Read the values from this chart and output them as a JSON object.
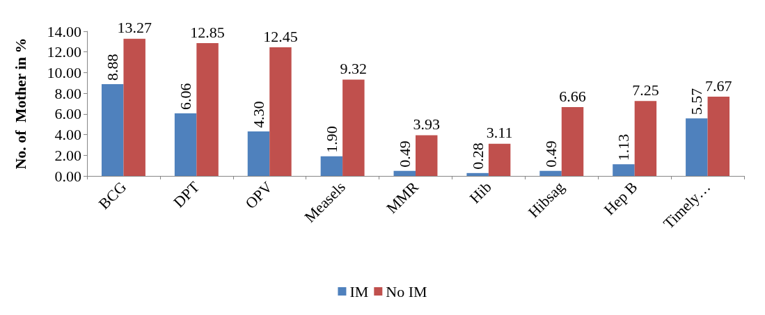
{
  "chart_data": {
    "type": "bar",
    "ylabel": "No. of  Mother in %",
    "categories": [
      "BCG",
      "DPT",
      "OPV",
      "Measels",
      "MMR",
      "Hib",
      "Hibsag",
      "Hep B",
      "Timely…"
    ],
    "series": [
      {
        "name": "IM",
        "color": "#4f81bd",
        "values": [
          8.88,
          6.06,
          4.3,
          1.9,
          0.49,
          0.28,
          0.49,
          1.13,
          5.57
        ],
        "value_labels": [
          "8.88",
          "6.06",
          "4.30",
          "1.90",
          "0.49",
          "0.28",
          "0.49",
          "1.13",
          "5.57"
        ]
      },
      {
        "name": "No IM",
        "color": "#c0504d",
        "values": [
          13.27,
          12.85,
          12.45,
          9.32,
          3.93,
          3.11,
          6.66,
          7.25,
          7.67
        ],
        "value_labels": [
          "13.27",
          "12.85",
          "12.45",
          "9.32",
          "3.93",
          "3.11",
          "6.66",
          "7.25",
          "7.67"
        ]
      }
    ],
    "ylim": [
      0,
      14
    ],
    "yticks": [
      {
        "value": 0,
        "label": "0.00"
      },
      {
        "value": 2,
        "label": "2.00"
      },
      {
        "value": 4,
        "label": "4.00"
      },
      {
        "value": 6,
        "label": "6.00"
      },
      {
        "value": 8,
        "label": "8.00"
      },
      {
        "value": 10,
        "label": "10.00"
      },
      {
        "value": 12,
        "label": "12.00"
      },
      {
        "value": 14,
        "label": "14.00"
      }
    ],
    "grid": false,
    "legend": "bottom"
  }
}
